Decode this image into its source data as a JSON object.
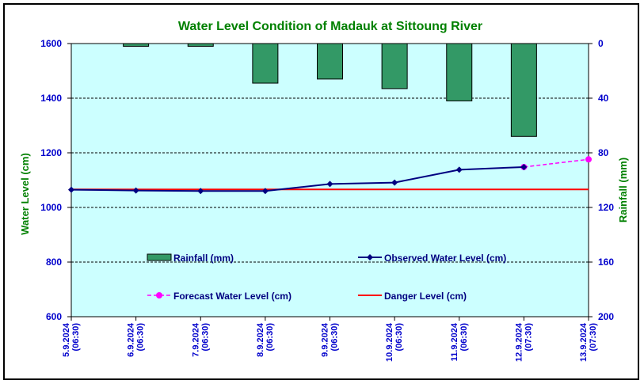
{
  "chart_data": {
    "type": "bar+line",
    "title": "Water Level Condition of Madauk at Sittoung River",
    "ylabel_left": "Water Level (cm)",
    "ylabel_right": "Rainfall (mm)",
    "ylim_left": [
      600,
      1600
    ],
    "yticks_left": [
      "600",
      "800",
      "1000",
      "1200",
      "1400",
      "1600"
    ],
    "ylim_right": [
      0,
      200
    ],
    "right_axis_inverted": true,
    "yticks_right": [
      "0",
      "40",
      "80",
      "120",
      "160",
      "200"
    ],
    "grid": "horizontal dashed",
    "categories": [
      [
        "5.9.2024",
        "(06:30)"
      ],
      [
        "6.9.2024",
        "(06:30)"
      ],
      [
        "7.9.2024",
        "(06:30)"
      ],
      [
        "8.9.2024",
        "(06:30)"
      ],
      [
        "9.9.2024",
        "(06:30)"
      ],
      [
        "10.9.2024",
        "(06:30)"
      ],
      [
        "11.9.2024",
        "(06:30)"
      ],
      [
        "12.9.2024",
        "(07:30)"
      ],
      [
        "13.9.2024",
        "(07:30)"
      ]
    ],
    "series": [
      {
        "name": "Rainfall (mm)",
        "kind": "bar",
        "axis": "right",
        "color": "#339966",
        "values": [
          null,
          2,
          2,
          29,
          26,
          33,
          42,
          68,
          null
        ]
      },
      {
        "name": "Observed Water Level (cm)",
        "kind": "line",
        "axis": "left",
        "color": "#000080",
        "values": [
          1065,
          1062,
          1060,
          1060,
          1086,
          1091,
          1138,
          1148,
          null
        ]
      },
      {
        "name": "Forecast Water Level (cm)",
        "kind": "line-dashed",
        "axis": "left",
        "color": "#ff00ff",
        "values": [
          null,
          null,
          null,
          null,
          null,
          null,
          null,
          1148,
          1176
        ]
      },
      {
        "name": "Danger Level (cm)",
        "kind": "line",
        "axis": "left",
        "color": "#ff0000",
        "values": [
          1066,
          1066,
          1066,
          1066,
          1066,
          1066,
          1066,
          1066,
          1066
        ]
      }
    ],
    "colors": {
      "plot_background": "#ccffff",
      "title": "#008000",
      "axis_labels": "#008000",
      "ticks": "#0000cc"
    }
  }
}
